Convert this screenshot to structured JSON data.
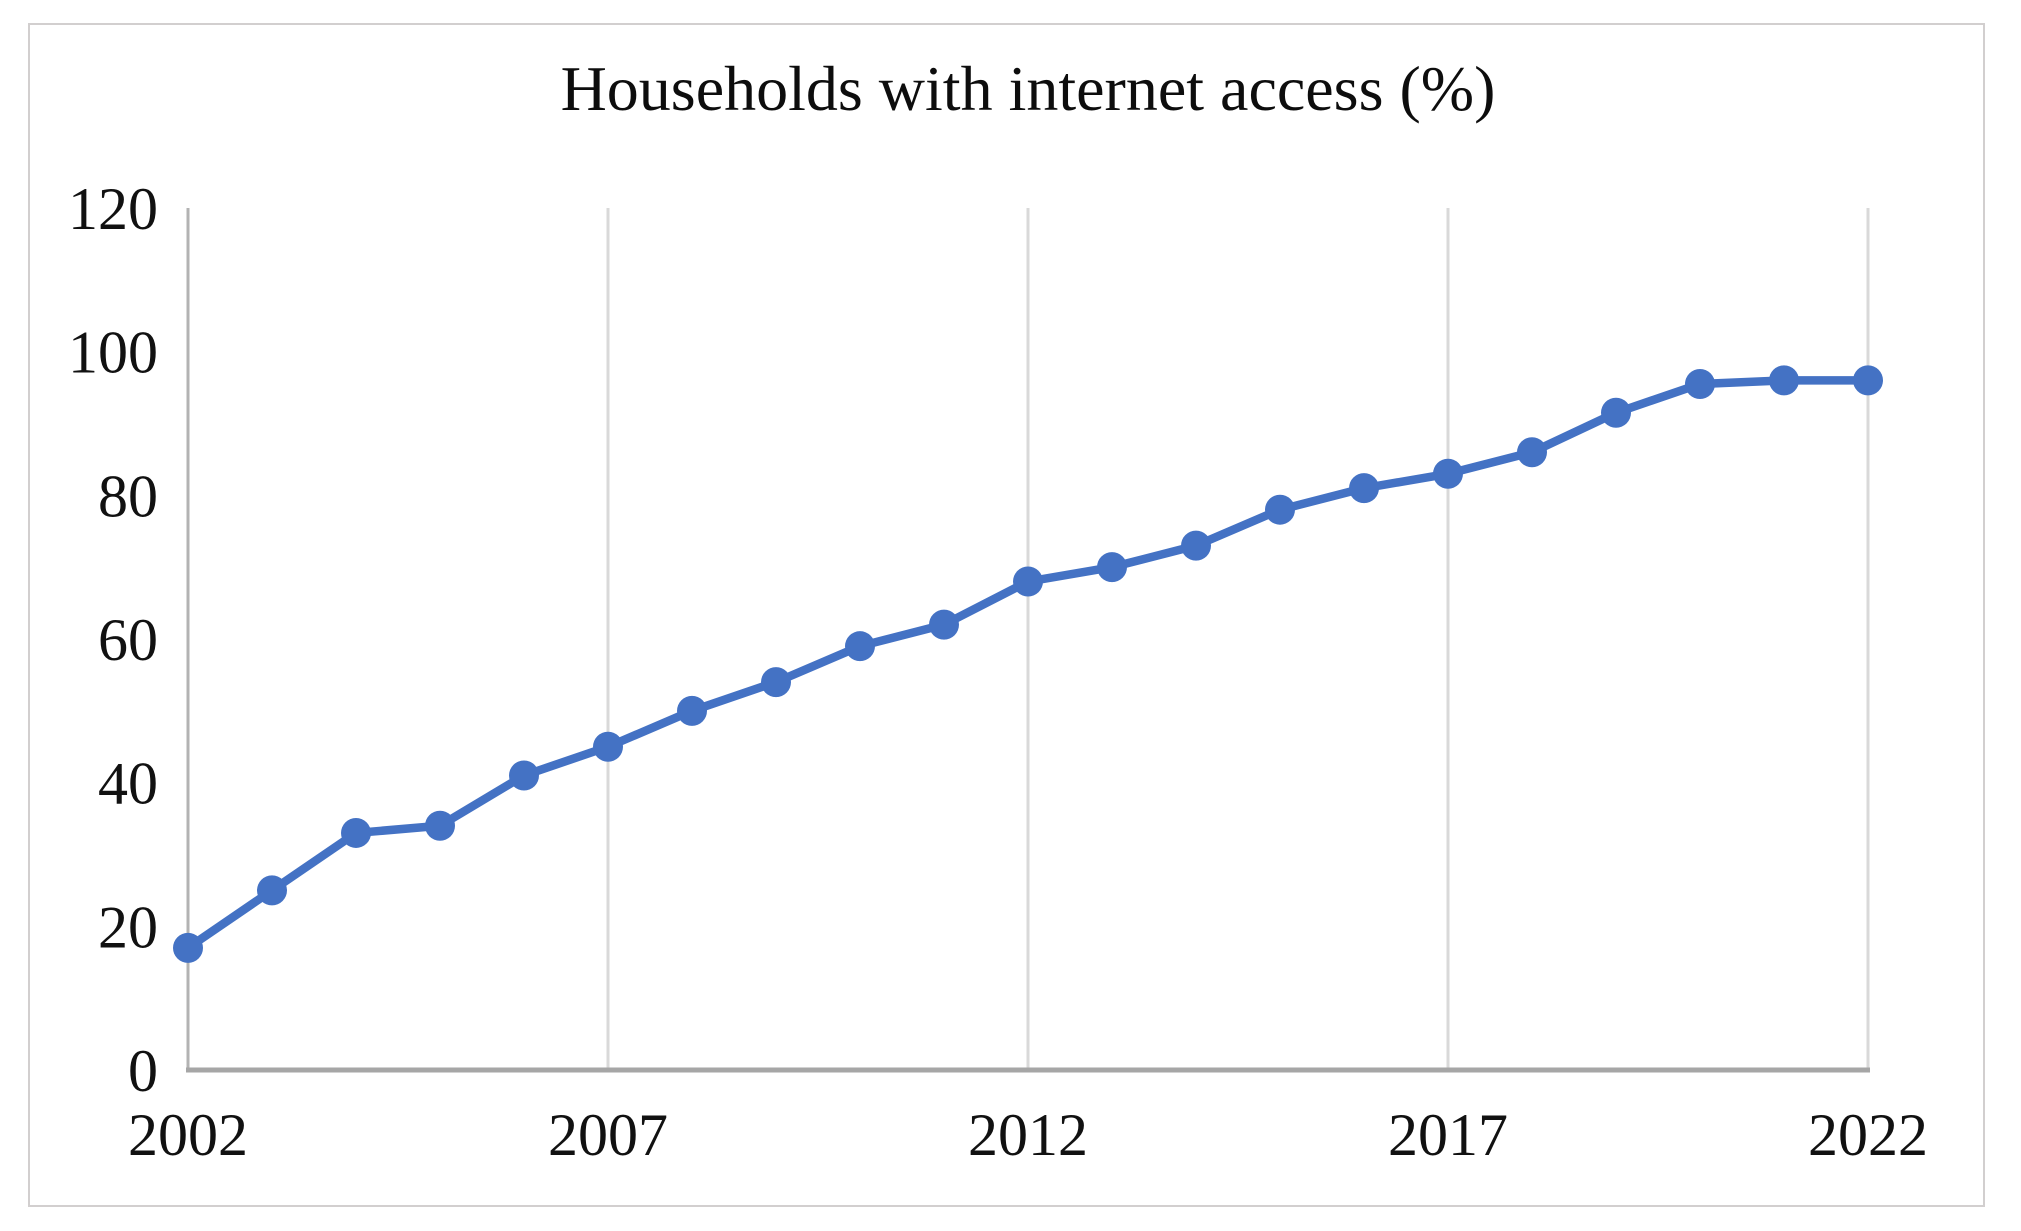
{
  "chart_data": {
    "type": "line",
    "title": "Households with internet access (%)",
    "x": [
      2002,
      2003,
      2004,
      2005,
      2006,
      2007,
      2008,
      2009,
      2010,
      2011,
      2012,
      2013,
      2014,
      2015,
      2016,
      2017,
      2018,
      2019,
      2020,
      2021,
      2022
    ],
    "values": [
      17,
      25,
      33,
      34,
      41,
      45,
      50,
      54,
      59,
      62,
      68,
      70,
      73,
      78,
      81,
      83,
      86,
      91.5,
      95.5,
      96,
      96
    ],
    "xlabel": "",
    "ylabel": "",
    "ylim": [
      0,
      120
    ],
    "y_ticks": [
      0,
      20,
      40,
      60,
      80,
      100,
      120
    ],
    "x_ticks": [
      2002,
      2007,
      2012,
      2017,
      2022
    ],
    "grid": "vertical-only",
    "legend": "none",
    "line_color": "#4472c4",
    "marker": "circle",
    "gridline_color": "#d9d9d9",
    "y_axis_color": "#b3b3b3",
    "x_axis_color": "#a6a6a6",
    "frame_color": "#d2cfcf",
    "text_color": "#111111",
    "background_color": "#ffffff"
  }
}
